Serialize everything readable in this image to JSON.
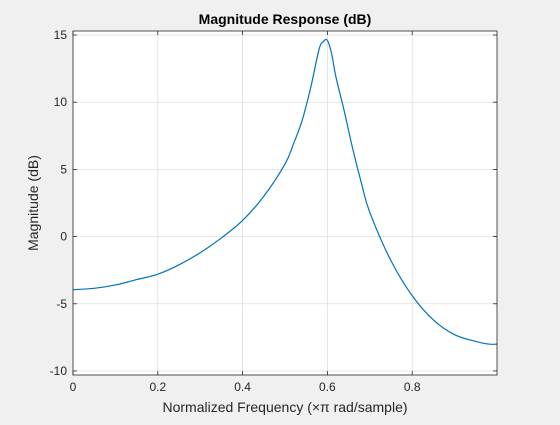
{
  "chart_data": {
    "type": "line",
    "title": "Magnitude Response (dB)",
    "xlabel": "Normalized Frequency (×π rad/sample)",
    "ylabel": "Magnitude (dB)",
    "xlim": [
      0,
      1
    ],
    "ylim": [
      -10.3,
      15.3
    ],
    "xticks": [
      0,
      0.2,
      0.4,
      0.6,
      0.8
    ],
    "xtick_labels": [
      "0",
      "0.2",
      "0.4",
      "0.6",
      "0.8"
    ],
    "yticks": [
      -10,
      -5,
      0,
      5,
      10,
      15
    ],
    "ytick_labels": [
      "-10",
      "-5",
      "0",
      "5",
      "10",
      "15"
    ],
    "grid": true,
    "series": [
      {
        "color": "#0072bd",
        "x": [
          0,
          0.05,
          0.1,
          0.15,
          0.2,
          0.25,
          0.3,
          0.35,
          0.4,
          0.45,
          0.5,
          0.52,
          0.54,
          0.56,
          0.58,
          0.59,
          0.6,
          0.61,
          0.62,
          0.64,
          0.66,
          0.68,
          0.7,
          0.75,
          0.8,
          0.85,
          0.9,
          0.95,
          0.98,
          1.0
        ],
        "y": [
          -3.95,
          -3.85,
          -3.6,
          -3.2,
          -2.8,
          -2.1,
          -1.2,
          -0.1,
          1.2,
          3.0,
          5.4,
          6.9,
          8.6,
          11.0,
          13.9,
          14.5,
          14.6,
          13.6,
          11.9,
          9.3,
          6.5,
          4.0,
          1.8,
          -1.8,
          -4.4,
          -6.2,
          -7.3,
          -7.8,
          -8.0,
          -8.0
        ]
      }
    ]
  },
  "colors": {
    "background": "#f0f0f0",
    "axes_background": "#ffffff",
    "grid": "#dedede",
    "axis": "#262626",
    "line": "#0072bd"
  }
}
